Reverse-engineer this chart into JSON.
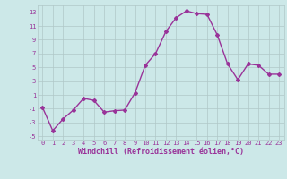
{
  "x": [
    0,
    1,
    2,
    3,
    4,
    5,
    6,
    7,
    8,
    9,
    10,
    11,
    12,
    13,
    14,
    15,
    16,
    17,
    18,
    19,
    20,
    21,
    22,
    23
  ],
  "y": [
    -0.8,
    -4.2,
    -2.5,
    -1.2,
    0.5,
    0.2,
    -1.5,
    -1.3,
    -1.2,
    1.3,
    5.3,
    7.0,
    10.2,
    12.2,
    13.2,
    12.8,
    12.7,
    9.7,
    5.5,
    3.2,
    5.5,
    5.3,
    4.0,
    4.0
  ],
  "xlabel": "Windchill (Refroidissement éolien,°C)",
  "xlim": [
    -0.5,
    23.5
  ],
  "ylim": [
    -5.5,
    14.0
  ],
  "yticks": [
    -5,
    -3,
    -1,
    1,
    3,
    5,
    7,
    9,
    11,
    13
  ],
  "xticks": [
    0,
    1,
    2,
    3,
    4,
    5,
    6,
    7,
    8,
    9,
    10,
    11,
    12,
    13,
    14,
    15,
    16,
    17,
    18,
    19,
    20,
    21,
    22,
    23
  ],
  "line_color": "#993399",
  "marker": "D",
  "marker_size": 2,
  "bg_color": "#cce8e8",
  "grid_color": "#b0c8c8",
  "label_color": "#993399",
  "tick_color": "#993399",
  "tick_fontsize": 5,
  "xlabel_fontsize": 6,
  "linewidth": 1.0
}
